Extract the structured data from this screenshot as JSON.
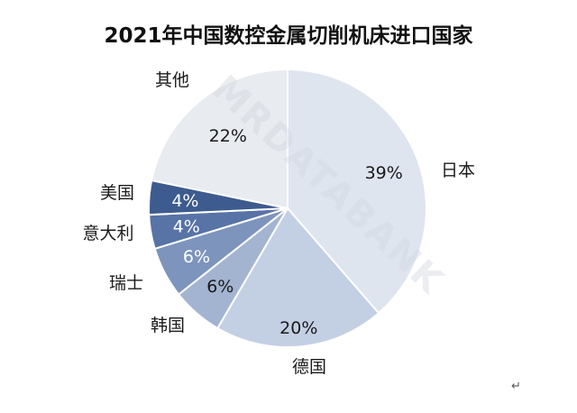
{
  "chart_data": {
    "type": "pie",
    "title": "2021年中国数控金属切削机床进口国家",
    "categories": [
      "日本",
      "德国",
      "韩国",
      "瑞士",
      "意大利",
      "美国",
      "其他"
    ],
    "values": [
      39,
      20,
      6,
      6,
      4,
      4,
      22
    ],
    "value_labels": [
      "39%",
      "20%",
      "6%",
      "6%",
      "4%",
      "4%",
      "22%"
    ],
    "colors": [
      "#dfe5ef",
      "#c3cfe3",
      "#a3b4d1",
      "#7d94bd",
      "#5873a6",
      "#3d5b8e",
      "#e8ebf0"
    ],
    "start_angle_deg": 0,
    "direction": "clockwise",
    "legend": "none"
  },
  "watermark": "MRDATABANK",
  "return_mark": "↵"
}
